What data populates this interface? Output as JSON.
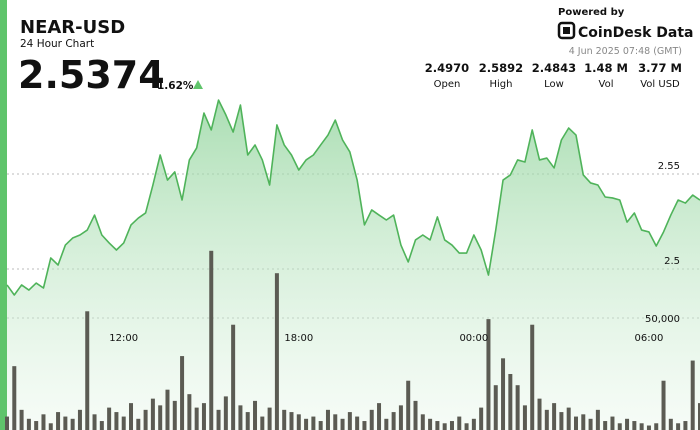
{
  "header": {
    "title": "NEAR-USD",
    "subtitle": "24 Hour Chart",
    "price": "2.5374",
    "change": "1.62%",
    "powered_by": "Powered by",
    "brand": "CoinDesk Data",
    "timestamp": "4 Jun 2025 07:48 (GMT)",
    "stats": [
      {
        "value": "2.4970",
        "label": "Open"
      },
      {
        "value": "2.5892",
        "label": "High"
      },
      {
        "value": "2.4843",
        "label": "Low"
      },
      {
        "value": "1.48 M",
        "label": "Vol"
      },
      {
        "value": "3.77 M",
        "label": "Vol USD"
      }
    ]
  },
  "chart_data": {
    "type": "line",
    "x": [
      8,
      8.25,
      8.5,
      8.75,
      9,
      9.25,
      9.5,
      9.75,
      10,
      10.25,
      10.5,
      10.75,
      11,
      11.25,
      11.5,
      11.75,
      12,
      12.25,
      12.5,
      12.75,
      13,
      13.25,
      13.5,
      13.75,
      14,
      14.25,
      14.5,
      14.75,
      15,
      15.25,
      15.5,
      15.75,
      16,
      16.25,
      16.5,
      16.75,
      17,
      17.25,
      17.5,
      17.75,
      18,
      18.25,
      18.5,
      18.75,
      19,
      19.25,
      19.5,
      19.75,
      20,
      20.25,
      20.5,
      20.75,
      21,
      21.25,
      21.5,
      21.75,
      22,
      22.25,
      22.5,
      22.75,
      23,
      23.25,
      23.5,
      23.75,
      24,
      24.25,
      24.5,
      24.75,
      25,
      25.25,
      25.5,
      25.75,
      26,
      26.25,
      26.5,
      26.75,
      27,
      27.25,
      27.5,
      27.75,
      28,
      28.25,
      28.5,
      28.75,
      29,
      29.25,
      29.5,
      29.75,
      30,
      30.25,
      30.5,
      30.75,
      31,
      31.25,
      31.5,
      31.75
    ],
    "price": {
      "color": "#4fb35a",
      "values": [
        2.4916,
        2.4863,
        2.4916,
        2.4889,
        2.4926,
        2.49,
        2.5058,
        2.5021,
        2.5126,
        2.5163,
        2.5179,
        2.5205,
        2.5284,
        2.5179,
        2.5137,
        2.51,
        2.5137,
        2.5232,
        2.5268,
        2.5295,
        2.5442,
        2.56,
        2.5468,
        2.5511,
        2.5363,
        2.5574,
        2.5637,
        2.5821,
        2.5732,
        2.5889,
        2.5811,
        2.5721,
        2.5863,
        2.56,
        2.5653,
        2.5574,
        2.5442,
        2.5758,
        2.5653,
        2.56,
        2.5521,
        2.5574,
        2.56,
        2.5653,
        2.5705,
        2.5784,
        2.5679,
        2.5616,
        2.5468,
        2.5232,
        2.5311,
        2.5284,
        2.5258,
        2.5284,
        2.5126,
        2.5037,
        2.5153,
        2.5179,
        2.5153,
        2.5274,
        2.5153,
        2.5126,
        2.5084,
        2.5084,
        2.5179,
        2.51,
        2.4968,
        2.5205,
        2.5468,
        2.5495,
        2.5574,
        2.5563,
        2.5732,
        2.5574,
        2.5584,
        2.5532,
        2.5679,
        2.5742,
        2.5705,
        2.5495,
        2.5453,
        2.5442,
        2.5379,
        2.5374,
        2.5363,
        2.5247,
        2.5295,
        2.5205,
        2.5195,
        2.5121,
        2.5195,
        2.5284,
        2.5363,
        2.5347,
        2.5389,
        2.5363
      ]
    },
    "volume": {
      "color": "#5b5b53",
      "axis": "y2",
      "values": [
        6000,
        28500,
        9000,
        5000,
        4000,
        7000,
        3000,
        8000,
        6000,
        5000,
        9000,
        53000,
        7000,
        4000,
        10000,
        8000,
        6000,
        12000,
        5000,
        9000,
        14000,
        11000,
        18000,
        13000,
        33000,
        16000,
        10000,
        12000,
        80000,
        9000,
        15000,
        47000,
        11000,
        8000,
        13000,
        6000,
        10000,
        70000,
        9000,
        8000,
        7000,
        5000,
        6000,
        4000,
        9000,
        7000,
        5000,
        8000,
        6000,
        4000,
        9000,
        12000,
        5000,
        8000,
        11000,
        22000,
        13000,
        7000,
        5000,
        4000,
        3000,
        4000,
        6000,
        3000,
        5000,
        10000,
        49500,
        20000,
        32000,
        25000,
        20000,
        11000,
        47000,
        14000,
        9000,
        12000,
        8000,
        10000,
        6000,
        7000,
        5000,
        9000,
        4000,
        6000,
        3000,
        5000,
        4000,
        3000,
        2000,
        3000,
        22000,
        5000,
        3000,
        4000,
        31000,
        12000
      ]
    },
    "xlim": [
      8,
      31.75
    ],
    "xticks": [
      {
        "value": 12,
        "label": "12:00"
      },
      {
        "value": 18,
        "label": "18:00"
      },
      {
        "value": 24,
        "label": "00:00"
      },
      {
        "value": 30,
        "label": "06:00"
      }
    ],
    "ylim": [
      2.42,
      2.6
    ],
    "yticks": [
      2.5,
      2.55
    ],
    "y2lim": [
      0,
      50000
    ],
    "y2ticks": [
      {
        "value": 50000,
        "label": "50,000"
      }
    ],
    "grid": true
  }
}
